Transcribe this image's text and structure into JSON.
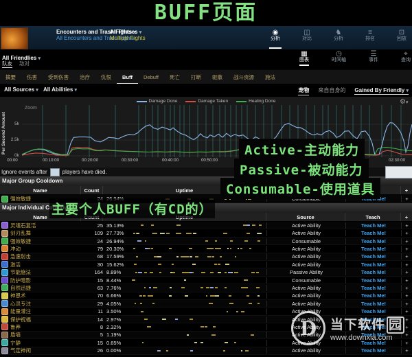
{
  "annotations": {
    "page_title": "BUFF页面",
    "overlay_lines": [
      "Active-主动能力",
      "Passive-被动能力",
      "Consumable-使用道具"
    ],
    "individual_note": "主要个人BUFF（有CD的）",
    "green": "#7de47d"
  },
  "topbar": {
    "fight": {
      "label": "Encounters and Trash Fights",
      "sublabel": "All Encounters and Trash Fights"
    },
    "phase": {
      "label": "All Phases",
      "sublabel": "Multiple Fights"
    },
    "modes": [
      {
        "icon": "eye-icon",
        "label": "分析",
        "active": true
      },
      {
        "icon": "compare-icon",
        "label": "对比",
        "active": false
      },
      {
        "icon": "knight-icon",
        "label": "分析",
        "active": false
      },
      {
        "icon": "ranking-icon",
        "label": "排名",
        "active": false
      },
      {
        "icon": "replay-icon",
        "label": "回放",
        "active": false
      }
    ]
  },
  "friendly_bar": {
    "selector": "All Friendlies",
    "faction_tabs": [
      {
        "label": "队友",
        "active": true
      },
      {
        "label": "敌对",
        "active": false
      }
    ],
    "views": [
      {
        "icon": "grid-icon",
        "label": "图表",
        "active": true
      },
      {
        "icon": "clock-icon",
        "label": "时间轴",
        "active": false
      },
      {
        "icon": "list-icon",
        "label": "事件",
        "active": false
      },
      {
        "icon": "pin-icon",
        "label": "查询",
        "active": false
      }
    ]
  },
  "nav_tabs": {
    "items": [
      "摘要",
      "伤害",
      "受到伤害",
      "治疗",
      "仇恨",
      "Buff",
      "Debuff",
      "死亡",
      "打断",
      "驱散",
      "战斗资源",
      "施法"
    ],
    "active": "Buff"
  },
  "filter_bar": {
    "sources": "All Sources",
    "abilities": "All Abilities",
    "pets": "宠物",
    "self": "来自自身的",
    "gained_by": "Gained By Friendly"
  },
  "chart_data": {
    "type": "line",
    "zoom_label": "Zoom",
    "y_axis_label": "Per Second Amount",
    "ylabel_units": "k per second",
    "y_ticks": [
      {
        "label": "5k",
        "k": 5
      },
      {
        "label": "2.5k",
        "k": 2.5
      },
      {
        "label": "0k",
        "k": 0
      }
    ],
    "x_ticks": [
      {
        "label": "00:00",
        "x": 18
      },
      {
        "label": "00:10:00",
        "x": 74
      },
      {
        "label": "00:20:00",
        "x": 131
      },
      {
        "label": "00:30:00",
        "x": 189
      },
      {
        "label": "00:40:00",
        "x": 248
      },
      {
        "label": "00:50:00",
        "x": 305
      },
      {
        "label": "01:00:00",
        "x": 364
      },
      {
        "label": "01:10:00",
        "x": 422
      },
      {
        "label": "01:20:00",
        "x": 480
      },
      {
        "label": "02:30:00",
        "x": 578
      }
    ],
    "legend": [
      {
        "label": "Damage Done",
        "color": "#8cb8e8"
      },
      {
        "label": "Damage Taken",
        "color": "#d05048"
      },
      {
        "label": "Healing Done",
        "color": "#3fae4f"
      }
    ],
    "legend_position": "top-center",
    "grid": true,
    "fight_line_color": "#2a7070",
    "fight_lines": [
      62,
      96,
      130,
      168,
      202,
      212,
      222,
      230,
      240,
      248,
      254,
      262,
      268,
      276,
      288,
      300,
      310,
      320,
      328,
      336,
      344,
      352,
      360,
      372,
      384,
      396,
      410,
      422,
      434,
      446,
      458,
      470,
      478,
      490,
      502,
      514,
      526,
      538,
      556,
      570,
      584
    ],
    "series": [
      {
        "name": "Damage Done",
        "color": "#8cb8e8",
        "points": [
          [
            32,
            0.1
          ],
          [
            40,
            0.6
          ],
          [
            50,
            1.0
          ],
          [
            58,
            1.05
          ],
          [
            66,
            0.9
          ],
          [
            74,
            0.5
          ],
          [
            82,
            0.25
          ],
          [
            90,
            0.15
          ],
          [
            98,
            0.2
          ],
          [
            103,
            2.0
          ],
          [
            107,
            2.9
          ],
          [
            115,
            3.0
          ],
          [
            124,
            3.0
          ],
          [
            132,
            2.95
          ],
          [
            138,
            2.4
          ],
          [
            146,
            2.2
          ],
          [
            152,
            2.5
          ],
          [
            158,
            2.9
          ],
          [
            166,
            2.85
          ],
          [
            172,
            2.7
          ],
          [
            180,
            3.1
          ],
          [
            188,
            3.4
          ],
          [
            194,
            3.3
          ],
          [
            200,
            3.6
          ],
          [
            206,
            4.2
          ],
          [
            212,
            4.7
          ],
          [
            218,
            4.9
          ],
          [
            224,
            4.4
          ],
          [
            230,
            4.2
          ],
          [
            236,
            4.55
          ],
          [
            242,
            4.35
          ],
          [
            248,
            4.1
          ],
          [
            252,
            4.45
          ],
          [
            258,
            3.9
          ],
          [
            264,
            3.5
          ],
          [
            270,
            3.3
          ],
          [
            276,
            2.9
          ],
          [
            282,
            2.55
          ],
          [
            288,
            3.0
          ],
          [
            292,
            3.5
          ],
          [
            296,
            3.1
          ],
          [
            302,
            2.85
          ],
          [
            306,
            3.3
          ],
          [
            312,
            3.0
          ],
          [
            318,
            3.45
          ],
          [
            324,
            2.95
          ],
          [
            330,
            3.55
          ],
          [
            336,
            3.05
          ],
          [
            342,
            3.4
          ],
          [
            348,
            3.15
          ],
          [
            354,
            3.3
          ],
          [
            360,
            2.8
          ],
          [
            366,
            2.5
          ],
          [
            372,
            3.0
          ],
          [
            378,
            2.7
          ],
          [
            384,
            2.2
          ],
          [
            390,
            1.95
          ],
          [
            396,
            2.4
          ],
          [
            402,
            3.0
          ],
          [
            408,
            4.0
          ],
          [
            414,
            4.9
          ],
          [
            420,
            5.15
          ],
          [
            426,
            4.8
          ],
          [
            432,
            4.5
          ],
          [
            438,
            4.45
          ],
          [
            444,
            4.1
          ],
          [
            450,
            3.6
          ],
          [
            456,
            3.3
          ],
          [
            462,
            3.5
          ],
          [
            468,
            3.3
          ],
          [
            474,
            3.8
          ],
          [
            480,
            4.0
          ],
          [
            486,
            3.5
          ],
          [
            490,
            2.9
          ],
          [
            496,
            3.2
          ],
          [
            502,
            3.9
          ],
          [
            508,
            3.95
          ],
          [
            514,
            3.2
          ],
          [
            520,
            2.7
          ],
          [
            526,
            3.8
          ],
          [
            532,
            3.95
          ],
          [
            538,
            3.1
          ],
          [
            542,
            2.0
          ],
          [
            546,
            0.15
          ],
          [
            552,
            0.2
          ],
          [
            556,
            1.6
          ],
          [
            560,
            3.4
          ],
          [
            564,
            4.7
          ],
          [
            568,
            5.25
          ],
          [
            572,
            5.2
          ],
          [
            576,
            4.8
          ],
          [
            580,
            4.3
          ],
          [
            584,
            3.6
          ],
          [
            588,
            2.4
          ],
          [
            591,
            0.6
          ],
          [
            594,
            1.5
          ],
          [
            597,
            3.6
          ],
          [
            600,
            5.0
          ]
        ]
      },
      {
        "name": "Damage Taken",
        "color": "#d05048",
        "points": [
          [
            32,
            0.1
          ],
          [
            42,
            0.3
          ],
          [
            52,
            0.45
          ],
          [
            62,
            0.4
          ],
          [
            72,
            0.25
          ],
          [
            82,
            0.12
          ],
          [
            92,
            0.08
          ],
          [
            100,
            0.1
          ],
          [
            105,
            1.25
          ],
          [
            112,
            1.35
          ],
          [
            120,
            1.3
          ],
          [
            128,
            1.32
          ],
          [
            136,
            1.0
          ],
          [
            144,
            0.85
          ],
          [
            152,
            0.95
          ],
          [
            160,
            0.9
          ],
          [
            170,
            0.8
          ],
          [
            180,
            0.75
          ],
          [
            192,
            0.7
          ],
          [
            204,
            0.65
          ],
          [
            216,
            0.6
          ],
          [
            228,
            0.66
          ],
          [
            240,
            0.6
          ],
          [
            252,
            0.68
          ],
          [
            264,
            0.6
          ],
          [
            276,
            0.55
          ],
          [
            288,
            0.62
          ],
          [
            300,
            0.58
          ],
          [
            312,
            0.66
          ],
          [
            324,
            0.6
          ],
          [
            336,
            0.72
          ],
          [
            344,
            0.9
          ],
          [
            352,
            1.05
          ],
          [
            360,
            0.85
          ],
          [
            372,
            0.7
          ],
          [
            384,
            0.55
          ],
          [
            396,
            0.6
          ],
          [
            408,
            0.72
          ],
          [
            420,
            0.65
          ],
          [
            432,
            0.6
          ],
          [
            440,
            0.55
          ],
          [
            546,
            0.1
          ],
          [
            552,
            0.15
          ],
          [
            558,
            0.7
          ],
          [
            564,
            0.85
          ],
          [
            570,
            0.75
          ],
          [
            576,
            0.55
          ],
          [
            582,
            0.35
          ],
          [
            588,
            0.22
          ],
          [
            594,
            0.18
          ],
          [
            600,
            0.15
          ]
        ]
      },
      {
        "name": "Healing Done",
        "color": "#3fae4f",
        "points": [
          [
            32,
            0.25
          ],
          [
            40,
            0.6
          ],
          [
            48,
            0.95
          ],
          [
            56,
            1.1
          ],
          [
            64,
            1.05
          ],
          [
            72,
            0.8
          ],
          [
            80,
            0.4
          ],
          [
            90,
            0.2
          ],
          [
            100,
            0.25
          ],
          [
            106,
            1.05
          ],
          [
            114,
            1.15
          ],
          [
            122,
            1.1
          ],
          [
            130,
            1.12
          ],
          [
            138,
            0.85
          ],
          [
            146,
            0.8
          ],
          [
            154,
            0.92
          ],
          [
            162,
            0.85
          ],
          [
            172,
            0.78
          ],
          [
            184,
            0.72
          ],
          [
            196,
            0.68
          ],
          [
            208,
            0.62
          ],
          [
            220,
            0.6
          ],
          [
            232,
            0.64
          ],
          [
            244,
            0.6
          ],
          [
            256,
            0.66
          ],
          [
            268,
            0.58
          ],
          [
            280,
            0.56
          ],
          [
            292,
            0.62
          ],
          [
            304,
            0.6
          ],
          [
            316,
            0.66
          ],
          [
            328,
            0.68
          ],
          [
            340,
            0.8
          ],
          [
            348,
            0.95
          ],
          [
            356,
            0.88
          ],
          [
            368,
            0.72
          ],
          [
            380,
            0.62
          ],
          [
            392,
            0.58
          ],
          [
            404,
            0.64
          ],
          [
            416,
            0.7
          ],
          [
            428,
            0.62
          ],
          [
            440,
            0.58
          ],
          [
            546,
            0.2
          ],
          [
            550,
            1.1
          ],
          [
            556,
            1.3
          ],
          [
            562,
            1.35
          ],
          [
            568,
            1.28
          ],
          [
            574,
            1.18
          ],
          [
            580,
            1.05
          ],
          [
            586,
            0.95
          ],
          [
            592,
            0.85
          ],
          [
            600,
            0.8
          ]
        ]
      }
    ]
  },
  "gear_icon": "gear-icon",
  "ignore_bar": {
    "prefix": "Ignore events after",
    "suffix": "players have died."
  },
  "tables": {
    "columns": [
      "Name",
      "Count",
      "Uptime",
      "Source",
      "Teach",
      "+"
    ],
    "teach_label": "Teach Me!",
    "group": {
      "title": "Major Group Cooldown",
      "rows": [
        {
          "name": "强效敏捷",
          "count": "24",
          "uptime": "26.94%",
          "source": "Consumable",
          "teach": "Teach Me!",
          "icon_color": "#3fae4a"
        }
      ]
    },
    "individual": {
      "title": "Major Individual Cooldown",
      "rows": [
        {
          "name": "灵魂石复活",
          "count": "25",
          "uptime": "35.13%",
          "source": "Active Ability",
          "teach": "Teach Me!",
          "icon_color": "#8a5fd4"
        },
        {
          "name": "剑刃乱舞",
          "count": "109",
          "uptime": "27.73%",
          "source": "Active Ability",
          "teach": "Teach Me!",
          "icon_color": "#b58a5a"
        },
        {
          "name": "强效敏捷",
          "count": "24",
          "uptime": "26.94%",
          "source": "Consumable",
          "teach": "Teach Me!",
          "icon_color": "#3fae4a"
        },
        {
          "name": "冲动",
          "count": "79",
          "uptime": "20.30%",
          "source": "Active Ability",
          "teach": "Teach Me!",
          "icon_color": "#d9822b"
        },
        {
          "name": "急速射击",
          "count": "68",
          "uptime": "17.59%",
          "source": "Active Ability",
          "teach": "Teach Me!",
          "icon_color": "#c23d32"
        },
        {
          "name": "激活",
          "count": "30",
          "uptime": "15.62%",
          "source": "Active Ability",
          "teach": "Teach Me!",
          "icon_color": "#3a6fd0"
        },
        {
          "name": "节能施法",
          "count": "164",
          "uptime": "8.89%",
          "source": "Passive Ability",
          "teach": "Teach Me!",
          "icon_color": "#2e9ad0"
        },
        {
          "name": "防护暗影",
          "count": "15",
          "uptime": "8.44%",
          "source": "Consumable",
          "teach": "Teach Me!",
          "icon_color": "#6a4fd0"
        },
        {
          "name": "自然迅捷",
          "count": "63",
          "uptime": "7.76%",
          "source": "Active Ability",
          "teach": "Teach Me!",
          "icon_color": "#3fae5a"
        },
        {
          "name": "神恩术",
          "count": "70",
          "uptime": "6.66%",
          "source": "Active Ability",
          "teach": "Teach Me!",
          "icon_color": "#d9c84a"
        },
        {
          "name": "心灵专注",
          "count": "29",
          "uptime": "4.05%",
          "source": "Active Ability",
          "teach": "Teach Me!",
          "icon_color": "#4a88d0"
        },
        {
          "name": "能量灌注",
          "count": "11",
          "uptime": "3.50%",
          "source": "Active Ability",
          "teach": "Teach Me!",
          "icon_color": "#d98a3a"
        },
        {
          "name": "保护祝福",
          "count": "14",
          "uptime": "2.97%",
          "source": "Active Ability",
          "teach": "Teach Me!",
          "icon_color": "#d9b83a"
        },
        {
          "name": "鲁莽",
          "count": "8",
          "uptime": "2.32%",
          "source": "Active Ability",
          "teach": "Teach Me!",
          "icon_color": "#c04a3a"
        },
        {
          "name": "盾墙",
          "count": "5",
          "uptime": "1.19%",
          "source": "Active Ability",
          "teach": "Teach Me!",
          "icon_color": "#8a6a4a"
        },
        {
          "name": "宁静",
          "count": "15",
          "uptime": "0.65%",
          "source": "Active Ability",
          "teach": "Teach Me!",
          "icon_color": "#3aa8a0"
        },
        {
          "name": "气定神闲",
          "count": "26",
          "uptime": "0.00%",
          "source": "Active Ability",
          "teach": "Teach Me!",
          "icon_color": "#8a8a9a"
        }
      ]
    }
  },
  "watermark": {
    "site": "当下软件园",
    "url": "www.downxia.com"
  }
}
